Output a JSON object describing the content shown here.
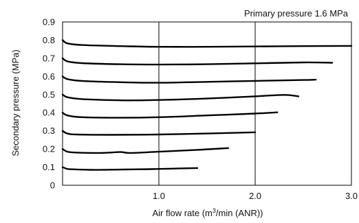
{
  "chart_data": {
    "type": "line",
    "title": "",
    "annotation": "Primary pressure 1.6 MPa",
    "xlabel": {
      "main": "Air flow rate (m",
      "sup": "3",
      "rest": "/min (ANR))"
    },
    "ylabel": "Secondary pressure (MPa)",
    "xlim": [
      0,
      3.0
    ],
    "ylim": [
      0,
      0.9
    ],
    "x_ticks": [
      "1.0",
      "2.0",
      "3.0"
    ],
    "y_ticks": [
      "0",
      "0.1",
      "0.2",
      "0.3",
      "0.4",
      "0.5",
      "0.6",
      "0.7",
      "0.8",
      "0.9"
    ],
    "grid": true,
    "legend": "none",
    "line_color": "#000000",
    "series": [
      {
        "x": [
          0,
          0.05,
          0.1,
          0.3,
          0.5,
          0.8,
          1.0,
          1.4
        ],
        "y": [
          0.1,
          0.09,
          0.088,
          0.085,
          0.086,
          0.088,
          0.09,
          0.095
        ]
      },
      {
        "x": [
          0,
          0.05,
          0.15,
          0.4,
          0.6,
          0.7,
          1.0,
          1.4,
          1.72
        ],
        "y": [
          0.2,
          0.185,
          0.18,
          0.178,
          0.183,
          0.178,
          0.185,
          0.195,
          0.205
        ]
      },
      {
        "x": [
          0,
          0.05,
          0.15,
          0.5,
          1.0,
          1.5,
          2.0
        ],
        "y": [
          0.3,
          0.285,
          0.28,
          0.278,
          0.28,
          0.285,
          0.292
        ]
      },
      {
        "x": [
          0,
          0.05,
          0.2,
          0.6,
          1.0,
          1.5,
          2.0,
          2.23
        ],
        "y": [
          0.4,
          0.385,
          0.375,
          0.372,
          0.375,
          0.385,
          0.395,
          0.402
        ]
      },
      {
        "x": [
          0,
          0.05,
          0.2,
          0.6,
          1.0,
          1.5,
          2.0,
          2.3,
          2.45
        ],
        "y": [
          0.5,
          0.485,
          0.475,
          0.468,
          0.47,
          0.478,
          0.49,
          0.498,
          0.49
        ]
      },
      {
        "x": [
          0,
          0.05,
          0.2,
          0.6,
          1.0,
          1.5,
          2.0,
          2.5,
          2.63
        ],
        "y": [
          0.6,
          0.585,
          0.575,
          0.568,
          0.565,
          0.57,
          0.575,
          0.58,
          0.582
        ]
      },
      {
        "x": [
          0,
          0.05,
          0.2,
          0.6,
          1.0,
          1.5,
          2.0,
          2.5,
          2.8
        ],
        "y": [
          0.7,
          0.683,
          0.673,
          0.667,
          0.665,
          0.667,
          0.672,
          0.677,
          0.675
        ]
      },
      {
        "x": [
          0,
          0.05,
          0.2,
          0.6,
          1.0,
          1.5,
          2.0,
          2.5,
          3.0
        ],
        "y": [
          0.8,
          0.782,
          0.773,
          0.767,
          0.763,
          0.763,
          0.765,
          0.767,
          0.768
        ]
      }
    ]
  }
}
